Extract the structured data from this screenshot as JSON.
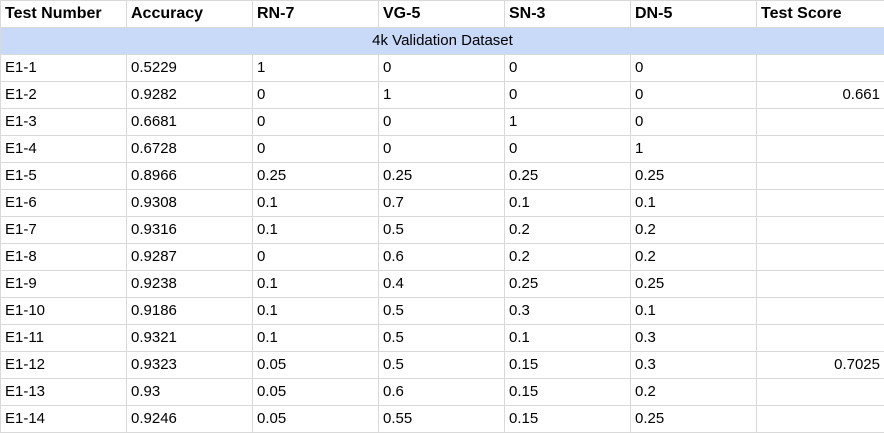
{
  "headers": [
    "Test Number",
    "Accuracy",
    "RN-7",
    "VG-5",
    "SN-3",
    "DN-5",
    "Test Score"
  ],
  "section_label": "4k Validation Dataset",
  "rows": [
    [
      "E1-1",
      "0.5229",
      "1",
      "0",
      "0",
      "0",
      ""
    ],
    [
      "E1-2",
      "0.9282",
      "0",
      "1",
      "0",
      "0",
      "0.661"
    ],
    [
      "E1-3",
      "0.6681",
      "0",
      "0",
      "1",
      "0",
      ""
    ],
    [
      "E1-4",
      "0.6728",
      "0",
      "0",
      "0",
      "1",
      ""
    ],
    [
      "E1-5",
      "0.8966",
      "0.25",
      "0.25",
      "0.25",
      "0.25",
      ""
    ],
    [
      "E1-6",
      "0.9308",
      "0.1",
      "0.7",
      "0.1",
      "0.1",
      ""
    ],
    [
      "E1-7",
      "0.9316",
      "0.1",
      "0.5",
      "0.2",
      "0.2",
      ""
    ],
    [
      "E1-8",
      "0.9287",
      "0",
      "0.6",
      "0.2",
      "0.2",
      ""
    ],
    [
      "E1-9",
      "0.9238",
      "0.1",
      "0.4",
      "0.25",
      "0.25",
      ""
    ],
    [
      "E1-10",
      "0.9186",
      "0.1",
      "0.5",
      "0.3",
      "0.1",
      ""
    ],
    [
      "E1-11",
      "0.9321",
      "0.1",
      "0.5",
      "0.1",
      "0.3",
      ""
    ],
    [
      "E1-12",
      "0.9323",
      "0.05",
      "0.5",
      "0.15",
      "0.3",
      "0.7025"
    ],
    [
      "E1-13",
      "0.93",
      "0.05",
      "0.6",
      "0.15",
      "0.2",
      ""
    ],
    [
      "E1-14",
      "0.9246",
      "0.05",
      "0.55",
      "0.15",
      "0.25",
      ""
    ]
  ]
}
